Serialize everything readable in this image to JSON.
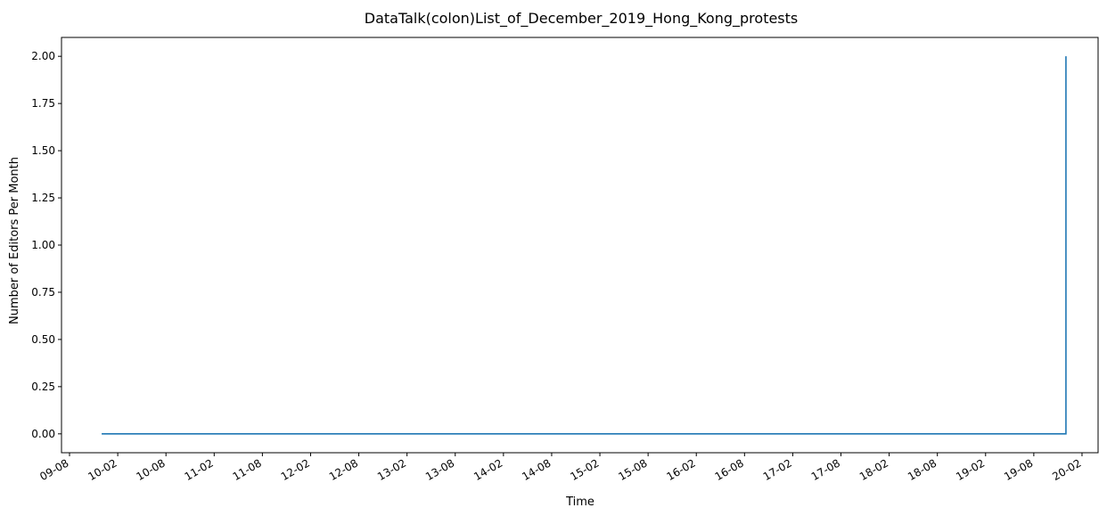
{
  "chart_data": {
    "type": "line",
    "title": "DataTalk(colon)List_of_December_2019_Hong_Kong_protests",
    "xlabel": "Time",
    "ylabel": "Number of Editors Per Month",
    "x_tick_labels": [
      "09-08",
      "10-02",
      "10-08",
      "11-02",
      "11-08",
      "12-02",
      "12-08",
      "13-02",
      "13-08",
      "14-02",
      "14-08",
      "15-02",
      "15-08",
      "16-02",
      "16-08",
      "17-02",
      "17-08",
      "18-02",
      "18-08",
      "19-02",
      "19-08",
      "20-02"
    ],
    "y_tick_labels": [
      "0.00",
      "0.25",
      "0.50",
      "0.75",
      "1.00",
      "1.25",
      "1.50",
      "1.75",
      "2.00"
    ],
    "ylim": [
      -0.1,
      2.1
    ],
    "xlim": [
      "2009-07",
      "2020-04"
    ],
    "grid": false,
    "series": [
      {
        "color": "#1f77b4",
        "points": [
          {
            "x": "2009-12",
            "y": 0
          },
          {
            "x": "2019-12",
            "y": 0
          },
          {
            "x": "2019-12",
            "y": 2
          }
        ]
      }
    ]
  }
}
